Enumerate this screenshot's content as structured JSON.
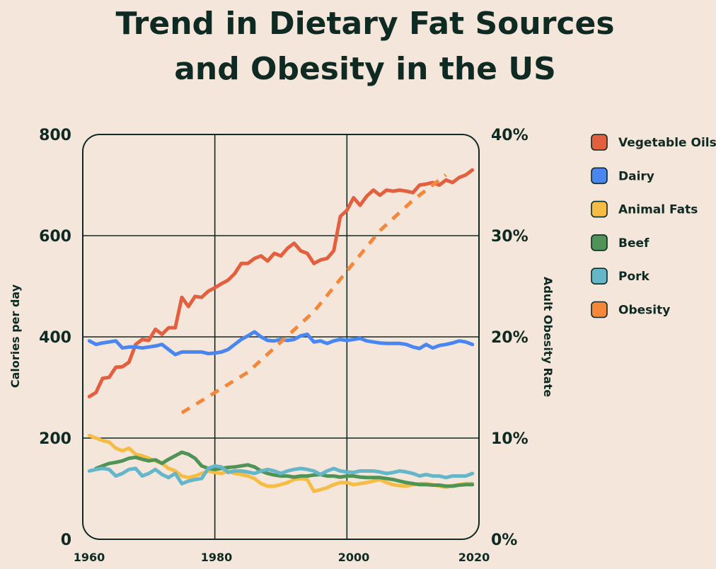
{
  "chart_data": {
    "type": "line",
    "title_line1": "Trend in Dietary Fat Sources",
    "title_line2": "and Obesity in the US",
    "ylabel": "Calories per day",
    "y2label": "Adult Obesity Rate",
    "xlim": [
      1960,
      2020
    ],
    "ylim": [
      0,
      800
    ],
    "y2lim": [
      0,
      0.4
    ],
    "x_ticks": [
      "1960",
      "1980",
      "2000",
      "2020"
    ],
    "y_ticks": [
      "800",
      "600",
      "400",
      "200",
      "0"
    ],
    "y2_ticks": [
      "40%",
      "30%",
      "20%",
      "10%",
      "0%"
    ],
    "grid": true,
    "legend_position": "right",
    "series": [
      {
        "name": "Vegetable Oils",
        "color": "#e2603f",
        "axis": "left",
        "x": [
          1961,
          1962,
          1963,
          1964,
          1965,
          1966,
          1967,
          1968,
          1969,
          1970,
          1971,
          1972,
          1973,
          1974,
          1975,
          1976,
          1977,
          1978,
          1979,
          1980,
          1981,
          1982,
          1983,
          1984,
          1985,
          1986,
          1987,
          1988,
          1989,
          1990,
          1991,
          1992,
          1993,
          1994,
          1995,
          1996,
          1997,
          1998,
          1999,
          2000,
          2001,
          2002,
          2003,
          2004,
          2005,
          2006,
          2007,
          2008,
          2009,
          2010,
          2011,
          2012,
          2013,
          2014,
          2015,
          2016,
          2017,
          2018,
          2019
        ],
        "values": [
          282,
          290,
          318,
          320,
          340,
          341,
          350,
          385,
          395,
          393,
          415,
          405,
          418,
          418,
          478,
          460,
          480,
          478,
          490,
          497,
          505,
          512,
          525,
          545,
          545,
          555,
          560,
          550,
          565,
          560,
          575,
          585,
          570,
          565,
          545,
          552,
          555,
          570,
          638,
          650,
          675,
          660,
          678,
          690,
          680,
          690,
          688,
          690,
          688,
          685,
          700,
          702,
          705,
          700,
          710,
          705,
          715,
          720,
          730
        ]
      },
      {
        "name": "Dairy",
        "color": "#4a86f0",
        "axis": "left",
        "x": [
          1961,
          1962,
          1963,
          1964,
          1965,
          1966,
          1967,
          1968,
          1969,
          1970,
          1971,
          1972,
          1973,
          1974,
          1975,
          1976,
          1977,
          1978,
          1979,
          1980,
          1981,
          1982,
          1983,
          1984,
          1985,
          1986,
          1987,
          1988,
          1989,
          1990,
          1991,
          1992,
          1993,
          1994,
          1995,
          1996,
          1997,
          1998,
          1999,
          2000,
          2001,
          2002,
          2003,
          2004,
          2005,
          2006,
          2007,
          2008,
          2009,
          2010,
          2011,
          2012,
          2013,
          2014,
          2015,
          2016,
          2017,
          2018,
          2019
        ],
        "values": [
          392,
          385,
          388,
          390,
          392,
          378,
          380,
          380,
          378,
          380,
          382,
          385,
          375,
          365,
          370,
          370,
          370,
          370,
          367,
          368,
          370,
          375,
          385,
          395,
          402,
          410,
          400,
          393,
          392,
          395,
          393,
          395,
          402,
          405,
          390,
          392,
          387,
          392,
          395,
          393,
          395,
          397,
          392,
          390,
          388,
          387,
          387,
          387,
          385,
          380,
          377,
          385,
          378,
          383,
          385,
          388,
          392,
          390,
          385
        ]
      },
      {
        "name": "Animal Fats",
        "color": "#f5bd45",
        "axis": "left",
        "x": [
          1961,
          1962,
          1963,
          1964,
          1965,
          1966,
          1967,
          1968,
          1969,
          1970,
          1971,
          1972,
          1973,
          1974,
          1975,
          1976,
          1977,
          1978,
          1979,
          1980,
          1981,
          1982,
          1983,
          1984,
          1985,
          1986,
          1987,
          1988,
          1989,
          1990,
          1991,
          1992,
          1993,
          1994,
          1995,
          1996,
          1997,
          1998,
          1999,
          2000,
          2001,
          2002,
          2003,
          2004,
          2005,
          2006,
          2007,
          2008,
          2009,
          2010,
          2011,
          2012,
          2013,
          2014,
          2015,
          2016,
          2017,
          2018,
          2019
        ],
        "values": [
          205,
          200,
          195,
          192,
          180,
          175,
          180,
          168,
          165,
          160,
          155,
          150,
          140,
          135,
          125,
          122,
          125,
          130,
          135,
          132,
          130,
          135,
          130,
          128,
          125,
          120,
          110,
          105,
          105,
          108,
          112,
          118,
          120,
          118,
          95,
          98,
          102,
          108,
          112,
          112,
          108,
          110,
          112,
          115,
          118,
          112,
          108,
          106,
          105,
          108,
          110,
          110,
          108,
          105,
          103,
          106,
          108,
          110,
          110
        ]
      },
      {
        "name": "Beef",
        "color": "#4f9356",
        "axis": "left",
        "x": [
          1962,
          1963,
          1964,
          1965,
          1966,
          1967,
          1968,
          1969,
          1970,
          1971,
          1972,
          1973,
          1974,
          1975,
          1976,
          1977,
          1978,
          1979,
          1980,
          1981,
          1982,
          1983,
          1984,
          1985,
          1986,
          1987,
          1988,
          1989,
          1990,
          1991,
          1992,
          1993,
          1994,
          1995,
          1996,
          1997,
          1998,
          1999,
          2000,
          2001,
          2002,
          2003,
          2004,
          2005,
          2006,
          2007,
          2008,
          2009,
          2010,
          2011,
          2012,
          2013,
          2014,
          2015,
          2016,
          2017,
          2018,
          2019
        ],
        "values": [
          140,
          145,
          150,
          152,
          155,
          160,
          162,
          158,
          155,
          157,
          150,
          158,
          165,
          172,
          168,
          160,
          145,
          140,
          138,
          140,
          142,
          143,
          145,
          147,
          143,
          135,
          130,
          127,
          125,
          125,
          123,
          125,
          125,
          127,
          128,
          125,
          125,
          123,
          125,
          125,
          123,
          122,
          122,
          122,
          120,
          118,
          115,
          112,
          110,
          108,
          108,
          107,
          107,
          105,
          105,
          107,
          108,
          108
        ]
      },
      {
        "name": "Pork",
        "color": "#65b6c8",
        "axis": "left",
        "x": [
          1961,
          1962,
          1963,
          1964,
          1965,
          1966,
          1967,
          1968,
          1969,
          1970,
          1971,
          1972,
          1973,
          1974,
          1975,
          1976,
          1977,
          1978,
          1979,
          1980,
          1981,
          1982,
          1983,
          1984,
          1985,
          1986,
          1987,
          1988,
          1989,
          1990,
          1991,
          1992,
          1993,
          1994,
          1995,
          1996,
          1997,
          1998,
          1999,
          2000,
          2001,
          2002,
          2003,
          2004,
          2005,
          2006,
          2007,
          2008,
          2009,
          2010,
          2011,
          2012,
          2013,
          2014,
          2015,
          2016,
          2017,
          2018,
          2019
        ],
        "values": [
          135,
          138,
          140,
          138,
          125,
          130,
          138,
          140,
          125,
          130,
          138,
          128,
          122,
          130,
          110,
          115,
          118,
          120,
          140,
          145,
          143,
          132,
          135,
          135,
          133,
          130,
          135,
          138,
          135,
          130,
          135,
          138,
          140,
          138,
          135,
          128,
          135,
          140,
          135,
          133,
          132,
          135,
          135,
          135,
          133,
          130,
          132,
          135,
          133,
          130,
          125,
          128,
          125,
          125,
          122,
          125,
          125,
          125,
          130
        ]
      },
      {
        "name": "Obesity",
        "color": "#f3873a",
        "axis": "right",
        "dashed": true,
        "x": [
          1975,
          1980,
          1985,
          1990,
          1995,
          2000,
          2005,
          2010,
          2015
        ],
        "values": [
          0.125,
          0.145,
          0.165,
          0.195,
          0.225,
          0.265,
          0.305,
          0.335,
          0.36
        ]
      }
    ]
  }
}
